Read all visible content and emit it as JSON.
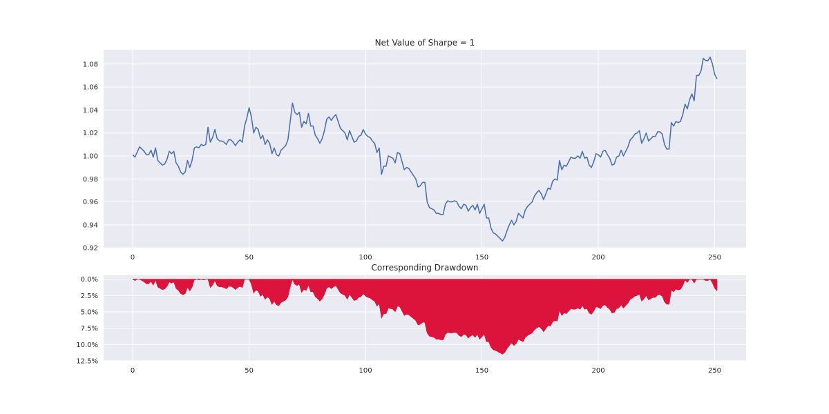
{
  "chart_data": [
    {
      "type": "line",
      "title": "Net Value of Sharpe = 1",
      "xlabel": "",
      "ylabel": "",
      "xlim": [
        -12.5,
        263.5
      ],
      "ylim": [
        0.9195,
        1.0925
      ],
      "x_ticks": [
        0,
        50,
        100,
        150,
        200,
        250
      ],
      "y_ticks": [
        0.92,
        0.94,
        0.96,
        0.98,
        1.0,
        1.02,
        1.04,
        1.06,
        1.08
      ],
      "y_tick_labels": [
        "0.92",
        "0.94",
        "0.96",
        "0.98",
        "1.00",
        "1.02",
        "1.04",
        "1.06",
        "1.08"
      ],
      "grid": true,
      "color": "#4c72b0",
      "anchors": [
        [
          0,
          1.001
        ],
        [
          1,
          0.999
        ],
        [
          3,
          1.008
        ],
        [
          5,
          1.004
        ],
        [
          6,
          1.001
        ],
        [
          7,
          1.001
        ],
        [
          8,
          1.005
        ],
        [
          9,
          0.999
        ],
        [
          10,
          1.007
        ],
        [
          11,
          0.996
        ],
        [
          12,
          0.994
        ],
        [
          13,
          0.992
        ],
        [
          14,
          0.993
        ],
        [
          15,
          0.997
        ],
        [
          16,
          1.004
        ],
        [
          17,
          1.002
        ],
        [
          18,
          1.004
        ],
        [
          19,
          0.994
        ],
        [
          20,
          0.991
        ],
        [
          21,
          0.986
        ],
        [
          22,
          0.984
        ],
        [
          23,
          0.986
        ],
        [
          24,
          0.996
        ],
        [
          25,
          0.99
        ],
        [
          26,
          0.996
        ],
        [
          27,
          1.007
        ],
        [
          28,
          1.008
        ],
        [
          29,
          1.007
        ],
        [
          30,
          1.01
        ],
        [
          31,
          1.009
        ],
        [
          32,
          1.01
        ],
        [
          33,
          1.025
        ],
        [
          34,
          1.012
        ],
        [
          35,
          1.016
        ],
        [
          36,
          1.023
        ],
        [
          37,
          1.015
        ],
        [
          38,
          1.013
        ],
        [
          39,
          1.013
        ],
        [
          40,
          1.012
        ],
        [
          41,
          1.01
        ],
        [
          42,
          1.014
        ],
        [
          43,
          1.014
        ],
        [
          44,
          1.012
        ],
        [
          45,
          1.009
        ],
        [
          46,
          1.012
        ],
        [
          47,
          1.014
        ],
        [
          48,
          1.012
        ],
        [
          49,
          1.026
        ],
        [
          50,
          1.033
        ],
        [
          51,
          1.042
        ],
        [
          52,
          1.034
        ],
        [
          53,
          1.02
        ],
        [
          54,
          1.025
        ],
        [
          55,
          1.023
        ],
        [
          56,
          1.015
        ],
        [
          57,
          1.018
        ],
        [
          58,
          1.01
        ],
        [
          59,
          1.014
        ],
        [
          60,
          1.011
        ],
        [
          61,
          1.002
        ],
        [
          62,
          1.007
        ],
        [
          63,
          1.001
        ],
        [
          64,
          1.0
        ],
        [
          65,
          1.005
        ],
        [
          66,
          1.007
        ],
        [
          67,
          1.009
        ],
        [
          68,
          1.014
        ],
        [
          69,
          1.03
        ],
        [
          70,
          1.046
        ],
        [
          71,
          1.038
        ],
        [
          72,
          1.036
        ],
        [
          73,
          1.038
        ],
        [
          74,
          1.025
        ],
        [
          75,
          1.03
        ],
        [
          76,
          1.028
        ],
        [
          77,
          1.037
        ],
        [
          78,
          1.026
        ],
        [
          79,
          1.026
        ],
        [
          80,
          1.018
        ],
        [
          81,
          1.015
        ],
        [
          82,
          1.011
        ],
        [
          83,
          1.015
        ],
        [
          84,
          1.022
        ],
        [
          85,
          1.032
        ],
        [
          86,
          1.034
        ],
        [
          87,
          1.031
        ],
        [
          88,
          1.034
        ],
        [
          89,
          1.036
        ],
        [
          90,
          1.03
        ],
        [
          91,
          1.024
        ],
        [
          92,
          1.022
        ],
        [
          93,
          1.02
        ],
        [
          94,
          1.014
        ],
        [
          95,
          1.022
        ],
        [
          96,
          1.017
        ],
        [
          97,
          1.012
        ],
        [
          98,
          1.013
        ],
        [
          99,
          1.017
        ],
        [
          100,
          1.018
        ],
        [
          101,
          1.023
        ],
        [
          102,
          1.019
        ],
        [
          103,
          1.017
        ],
        [
          104,
          1.016
        ],
        [
          105,
          1.013
        ],
        [
          106,
          1.011
        ],
        [
          107,
          1.003
        ],
        [
          108,
          1.007
        ],
        [
          109,
          0.984
        ],
        [
          110,
          0.991
        ],
        [
          111,
          0.991
        ],
        [
          112,
          1.0
        ],
        [
          113,
          0.999
        ],
        [
          114,
          0.998
        ],
        [
          115,
          0.994
        ],
        [
          116,
          1.003
        ],
        [
          117,
          1.002
        ],
        [
          118,
          0.995
        ],
        [
          119,
          0.988
        ],
        [
          120,
          0.99
        ],
        [
          121,
          0.989
        ],
        [
          122,
          0.986
        ],
        [
          123,
          0.983
        ],
        [
          124,
          0.98
        ],
        [
          125,
          0.973
        ],
        [
          126,
          0.974
        ],
        [
          127,
          0.977
        ],
        [
          128,
          0.977
        ],
        [
          129,
          0.96
        ],
        [
          130,
          0.955
        ],
        [
          131,
          0.954
        ],
        [
          132,
          0.953
        ],
        [
          133,
          0.95
        ],
        [
          134,
          0.95
        ],
        [
          135,
          0.949
        ],
        [
          136,
          0.949
        ],
        [
          137,
          0.958
        ],
        [
          138,
          0.961
        ],
        [
          139,
          0.96
        ],
        [
          140,
          0.96
        ],
        [
          141,
          0.961
        ],
        [
          142,
          0.96
        ],
        [
          143,
          0.956
        ],
        [
          144,
          0.954
        ],
        [
          145,
          0.958
        ],
        [
          146,
          0.957
        ],
        [
          147,
          0.952
        ],
        [
          148,
          0.955
        ],
        [
          149,
          0.957
        ],
        [
          150,
          0.953
        ],
        [
          151,
          0.958
        ],
        [
          152,
          0.95
        ],
        [
          153,
          0.954
        ],
        [
          154,
          0.958
        ],
        [
          155,
          0.946
        ],
        [
          156,
          0.946
        ],
        [
          157,
          0.937
        ],
        [
          158,
          0.933
        ],
        [
          159,
          0.932
        ],
        [
          160,
          0.93
        ],
        [
          161,
          0.928
        ],
        [
          162,
          0.926
        ],
        [
          163,
          0.929
        ],
        [
          164,
          0.935
        ],
        [
          165,
          0.94
        ],
        [
          166,
          0.944
        ],
        [
          167,
          0.94
        ],
        [
          168,
          0.943
        ],
        [
          169,
          0.95
        ],
        [
          170,
          0.948
        ],
        [
          171,
          0.946
        ],
        [
          172,
          0.953
        ],
        [
          173,
          0.956
        ],
        [
          174,
          0.958
        ],
        [
          175,
          0.96
        ],
        [
          176,
          0.965
        ],
        [
          177,
          0.968
        ],
        [
          178,
          0.97
        ],
        [
          179,
          0.967
        ],
        [
          180,
          0.962
        ],
        [
          181,
          0.967
        ],
        [
          182,
          0.972
        ],
        [
          183,
          0.971
        ],
        [
          184,
          0.978
        ],
        [
          185,
          0.98
        ],
        [
          186,
          0.979
        ],
        [
          187,
          0.996
        ],
        [
          188,
          0.988
        ],
        [
          189,
          0.992
        ],
        [
          190,
          0.991
        ],
        [
          191,
          0.995
        ],
        [
          192,
          0.999
        ],
        [
          193,
          0.998
        ],
        [
          194,
          0.998
        ],
        [
          195,
          1.0
        ],
        [
          196,
          0.998
        ],
        [
          197,
          1.004
        ],
        [
          198,
          0.998
        ],
        [
          199,
          0.999
        ],
        [
          200,
          0.992
        ],
        [
          201,
          0.99
        ],
        [
          202,
          0.995
        ],
        [
          203,
          1.002
        ],
        [
          204,
          1.001
        ],
        [
          205,
          0.999
        ],
        [
          206,
          1.004
        ],
        [
          207,
          1.005
        ],
        [
          208,
          1.001
        ],
        [
          209,
          0.998
        ],
        [
          210,
          0.992
        ],
        [
          211,
          0.993
        ],
        [
          212,
          0.999
        ],
        [
          213,
          1.0
        ],
        [
          214,
          1.005
        ],
        [
          215,
          1.0
        ],
        [
          216,
          1.004
        ],
        [
          217,
          1.008
        ],
        [
          218,
          1.014
        ],
        [
          219,
          1.016
        ],
        [
          220,
          1.019
        ],
        [
          221,
          1.02
        ],
        [
          222,
          1.022
        ],
        [
          223,
          1.011
        ],
        [
          224,
          1.015
        ],
        [
          225,
          1.02
        ],
        [
          226,
          1.013
        ],
        [
          227,
          1.015
        ],
        [
          228,
          1.017
        ],
        [
          229,
          1.017
        ],
        [
          230,
          1.021
        ],
        [
          231,
          1.021
        ],
        [
          232,
          1.019
        ],
        [
          233,
          1.01
        ],
        [
          234,
          1.006
        ],
        [
          235,
          1.006
        ],
        [
          236,
          1.029
        ],
        [
          237,
          1.026
        ],
        [
          238,
          1.03
        ],
        [
          239,
          1.029
        ],
        [
          240,
          1.03
        ],
        [
          241,
          1.036
        ],
        [
          242,
          1.045
        ],
        [
          243,
          1.041
        ],
        [
          244,
          1.049
        ],
        [
          245,
          1.054
        ],
        [
          246,
          1.048
        ],
        [
          247,
          1.07
        ],
        [
          248,
          1.07
        ],
        [
          249,
          1.074
        ],
        [
          250,
          1.085
        ],
        [
          251,
          1.083
        ],
        [
          252,
          1.083
        ],
        [
          253,
          1.086
        ],
        [
          254,
          1.08
        ],
        [
          255,
          1.071
        ],
        [
          256,
          1.067
        ]
      ]
    },
    {
      "type": "area",
      "title": "Corresponding Drawdown",
      "xlabel": "",
      "ylabel": "",
      "xlim": [
        -12.5,
        263.5
      ],
      "ylim": [
        12.5,
        -0.6
      ],
      "y_inverted": true,
      "x_ticks": [
        0,
        50,
        100,
        150,
        200,
        250
      ],
      "y_ticks": [
        0,
        2.5,
        5,
        7.5,
        10,
        12.5
      ],
      "y_tick_labels": [
        "0.0%",
        "2.5%",
        "5.0%",
        "7.5%",
        "10.0%",
        "12.5%"
      ],
      "grid": true,
      "color": "#dc143c",
      "derived_from": "running peak of net value series"
    }
  ]
}
